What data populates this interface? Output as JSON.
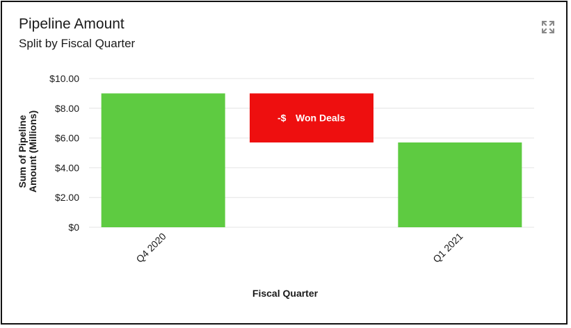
{
  "header": {
    "title": "Pipeline Amount",
    "subtitle": "Split by Fiscal Quarter"
  },
  "icons": {
    "expand": "expand-icon"
  },
  "chart_data": {
    "type": "bar",
    "subtype": "waterfall",
    "categories": [
      "Q4 2020",
      "",
      "Q1 2021"
    ],
    "bars": [
      {
        "category": "Q4 2020",
        "start": 0,
        "end": 9.0,
        "color": "#5ecb41",
        "label": ""
      },
      {
        "category": "",
        "start": 5.7,
        "end": 9.0,
        "color": "#ee0f0f",
        "label_prefix": "-$",
        "label": "Won Deals"
      },
      {
        "category": "Q1 2021",
        "start": 0,
        "end": 5.7,
        "color": "#5ecb41",
        "label": ""
      }
    ],
    "ylim": [
      0,
      10
    ],
    "yticks": [
      0,
      2,
      4,
      6,
      8,
      10
    ],
    "ytick_labels": [
      "$0",
      "$2.00",
      "$4.00",
      "$6.00",
      "$8.00",
      "$10.00"
    ],
    "ylabel_line1": "Sum of Pipeline",
    "ylabel_line2": "Amount (Millions)",
    "xlabel": "Fiscal Quarter",
    "grid": true,
    "gridline_color": "#e4e4e4"
  }
}
